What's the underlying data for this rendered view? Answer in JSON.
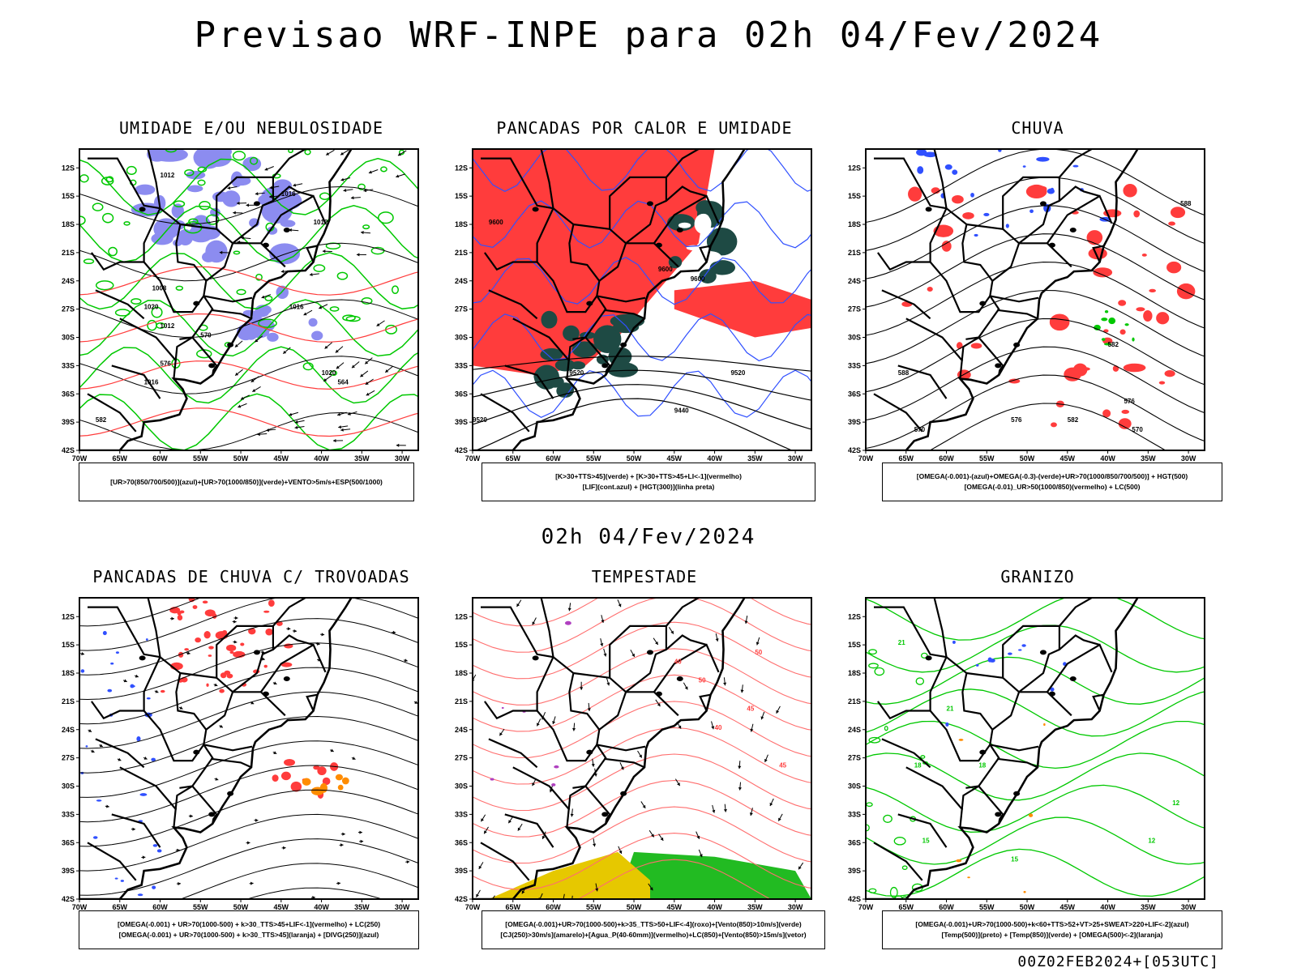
{
  "main_title": "Previsao WRF-INPE  para 02h 04/Fev/2024",
  "mid_time": "02h 04/Fev/2024",
  "footer_stamp": "00Z02FEB2024+[053UTC]",
  "axes": {
    "lat_labels": [
      "12S",
      "15S",
      "18S",
      "21S",
      "24S",
      "27S",
      "30S",
      "33S",
      "36S",
      "39S",
      "42S"
    ],
    "lon_labels": [
      "70W",
      "65W",
      "60W",
      "55W",
      "50W",
      "45W",
      "40W",
      "35W",
      "30W"
    ],
    "lat_range": [
      -42,
      -10
    ],
    "lon_range": [
      -70,
      -28
    ]
  },
  "colors": {
    "blue_fill": "#8c8cf0",
    "green": "#00c800",
    "red": "#ff3c3c",
    "dark_teal": "#1e4a44",
    "blue_line": "#3050ff",
    "yellow": "#e6c800",
    "orange": "#ff8c00",
    "purple": "#b040c0",
    "pink": "#ff6e6e"
  },
  "panels": [
    {
      "title": "UMIDADE E/OU NEBULOSIDADE",
      "legend": [
        "[UR>70(850/700/500)](azul)+[UR>70(1000/850)](verde)+VENTO>5m/s+ESP(500/1000)"
      ],
      "contour_labels": [
        "1012",
        "1016",
        "1020",
        "1008",
        "1012",
        "1016",
        "1020",
        "570",
        "576",
        "582",
        "564",
        "1012",
        "1016"
      ]
    },
    {
      "title": "PANCADAS POR CALOR E UMIDADE",
      "legend": [
        "[K>30+TTS>45](verde) + [K>30+TTS>45+LI<-1](vermelho)",
        "[LIF](cont.azul) + [HGT(300)](linha preta)"
      ],
      "contour_labels": [
        "9600",
        "9600",
        "9600",
        "9520",
        "9520",
        "9440",
        "9520"
      ]
    },
    {
      "title": "CHUVA",
      "legend": [
        "[OMEGA(-0.001)-(azul)+OMEGA(-0.3)-(verde)+UR>70(1000/850/700/500)] + HGT(500)",
        "[OMEGA(-0.01)_UR>50(1000/850)(vermelho) + LC(500)"
      ],
      "contour_labels": [
        "588",
        "582",
        "576",
        "570",
        "576",
        "582",
        "588",
        "570"
      ]
    },
    {
      "title": "PANCADAS DE CHUVA C/ TROVOADAS",
      "legend": [
        "[OMEGA(-0.001) + UR>70(1000-500) + k>30_TTS>45+LIF<-1](vermelho) + LC(250)",
        "[OMEGA(-0.001) + UR>70(1000-500) + k>30_TTS>45](laranja) + [DIVG(250)](azul)"
      ],
      "contour_labels": []
    },
    {
      "title": "TEMPESTADE",
      "legend": [
        "[OMEGA(-0.001)+UR>70(1000-500)+k>35_TTS>50+LIF<-4](roxo)+[Vento(850)>10m/s](verde)",
        "[CJ(250)>30m/s](amarelo)+[Agua_P(40-60mm)](vermelho)+LC(850)+[Vento(850)>15m/s](vetor)"
      ],
      "contour_labels": [
        "40",
        "50",
        "45",
        "40",
        "45",
        "50"
      ]
    },
    {
      "title": "GRANIZO",
      "legend": [
        "[OMEGA(-0.001)+UR>70(1000-500)+k<60+TTS>52+VT>25+SWEAT>220+LIF<-2](azul)",
        "[Temp(500)](preto) + [Temp(850)](verde) + [OMEGA(500)<-2](laranja)"
      ],
      "contour_labels": [
        "21",
        "18",
        "15",
        "12",
        "15",
        "18",
        "21",
        "12"
      ]
    }
  ]
}
